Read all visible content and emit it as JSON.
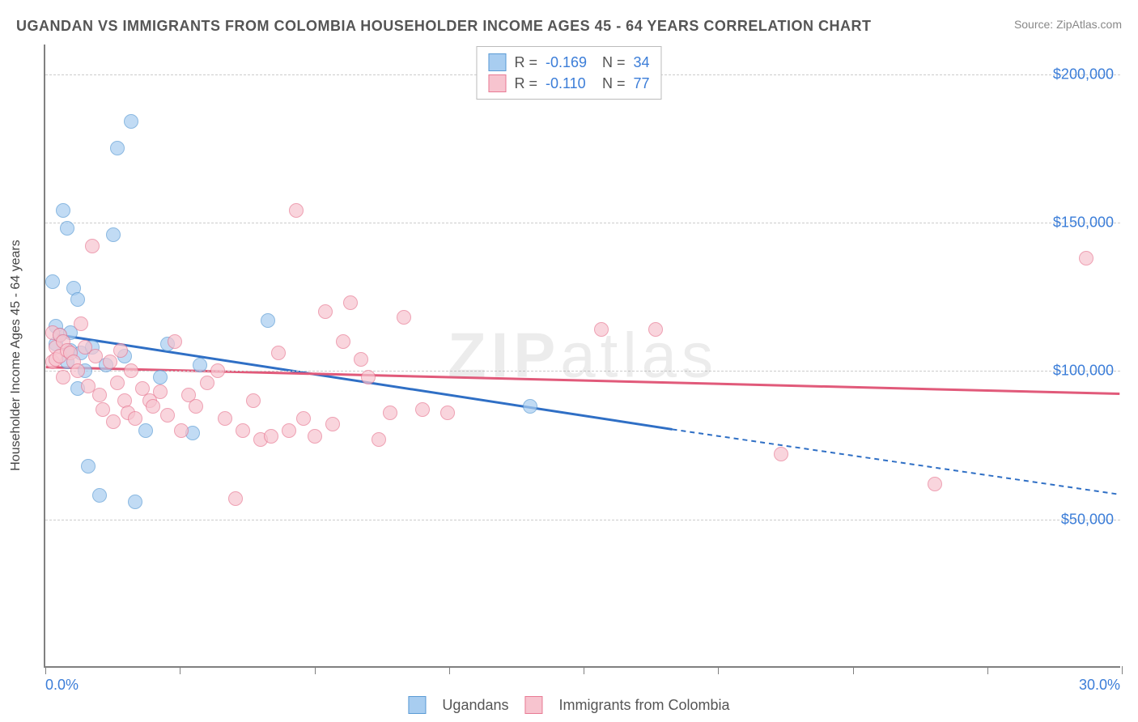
{
  "title": "UGANDAN VS IMMIGRANTS FROM COLOMBIA HOUSEHOLDER INCOME AGES 45 - 64 YEARS CORRELATION CHART",
  "source": "Source: ZipAtlas.com",
  "watermark": "ZIPatlas",
  "chart": {
    "type": "scatter",
    "y_axis_title": "Householder Income Ages 45 - 64 years",
    "background_color": "#ffffff",
    "grid_color": "#cccccc",
    "axis_color": "#808080",
    "x": {
      "min": 0.0,
      "max": 30.0,
      "label_min": "0.0%",
      "label_max": "30.0%",
      "label_color": "#3b7dd8",
      "ticks_pct": [
        0,
        12.5,
        25,
        37.5,
        50,
        62.5,
        75,
        87.5,
        100
      ]
    },
    "y": {
      "min": 0,
      "max": 210000,
      "gridlines": [
        50000,
        100000,
        150000,
        200000
      ],
      "labels": [
        "$50,000",
        "$100,000",
        "$150,000",
        "$200,000"
      ],
      "label_color": "#3b7dd8"
    },
    "series": [
      {
        "name": "Ugandans",
        "color_fill": "#a8cdf0",
        "color_stroke": "#5a9bd5",
        "trend_color": "#2f6fc5",
        "R": "-0.169",
        "N": "34",
        "trend": {
          "x1": 0.3,
          "y1": 112000,
          "x2_solid": 17.5,
          "y2_solid": 80000,
          "x2_dash": 30.0,
          "y2_dash": 58000
        },
        "points": [
          {
            "x": 0.2,
            "y": 130000
          },
          {
            "x": 0.3,
            "y": 115000
          },
          {
            "x": 0.3,
            "y": 109000
          },
          {
            "x": 0.4,
            "y": 112000
          },
          {
            "x": 0.5,
            "y": 154000
          },
          {
            "x": 0.6,
            "y": 148000
          },
          {
            "x": 0.6,
            "y": 103000
          },
          {
            "x": 0.7,
            "y": 113000
          },
          {
            "x": 0.7,
            "y": 107000
          },
          {
            "x": 0.8,
            "y": 128000
          },
          {
            "x": 0.9,
            "y": 124000
          },
          {
            "x": 0.9,
            "y": 94000
          },
          {
            "x": 1.0,
            "y": 106000
          },
          {
            "x": 1.1,
            "y": 100000
          },
          {
            "x": 1.2,
            "y": 68000
          },
          {
            "x": 1.3,
            "y": 108000
          },
          {
            "x": 1.5,
            "y": 58000
          },
          {
            "x": 1.7,
            "y": 102000
          },
          {
            "x": 1.9,
            "y": 146000
          },
          {
            "x": 2.0,
            "y": 175000
          },
          {
            "x": 2.2,
            "y": 105000
          },
          {
            "x": 2.4,
            "y": 184000
          },
          {
            "x": 2.5,
            "y": 56000
          },
          {
            "x": 2.8,
            "y": 80000
          },
          {
            "x": 3.2,
            "y": 98000
          },
          {
            "x": 3.4,
            "y": 109000
          },
          {
            "x": 4.1,
            "y": 79000
          },
          {
            "x": 4.3,
            "y": 102000
          },
          {
            "x": 6.2,
            "y": 117000
          },
          {
            "x": 13.5,
            "y": 88000
          }
        ]
      },
      {
        "name": "Immigrants from Colombia",
        "color_fill": "#f7c4cf",
        "color_stroke": "#e87a94",
        "trend_color": "#e15a7a",
        "R": "-0.110",
        "N": "77",
        "trend": {
          "x1": 0.0,
          "y1": 101000,
          "x2_solid": 30.0,
          "y2_solid": 92000,
          "x2_dash": 30.0,
          "y2_dash": 92000
        },
        "points": [
          {
            "x": 0.2,
            "y": 113000
          },
          {
            "x": 0.2,
            "y": 103000
          },
          {
            "x": 0.3,
            "y": 108000
          },
          {
            "x": 0.3,
            "y": 104000
          },
          {
            "x": 0.4,
            "y": 112000
          },
          {
            "x": 0.4,
            "y": 105000
          },
          {
            "x": 0.5,
            "y": 110000
          },
          {
            "x": 0.5,
            "y": 98000
          },
          {
            "x": 0.6,
            "y": 107000
          },
          {
            "x": 0.7,
            "y": 106000
          },
          {
            "x": 0.8,
            "y": 103000
          },
          {
            "x": 0.9,
            "y": 100000
          },
          {
            "x": 1.0,
            "y": 116000
          },
          {
            "x": 1.1,
            "y": 108000
          },
          {
            "x": 1.2,
            "y": 95000
          },
          {
            "x": 1.3,
            "y": 142000
          },
          {
            "x": 1.4,
            "y": 105000
          },
          {
            "x": 1.5,
            "y": 92000
          },
          {
            "x": 1.6,
            "y": 87000
          },
          {
            "x": 1.8,
            "y": 103000
          },
          {
            "x": 1.9,
            "y": 83000
          },
          {
            "x": 2.0,
            "y": 96000
          },
          {
            "x": 2.1,
            "y": 107000
          },
          {
            "x": 2.2,
            "y": 90000
          },
          {
            "x": 2.3,
            "y": 86000
          },
          {
            "x": 2.4,
            "y": 100000
          },
          {
            "x": 2.5,
            "y": 84000
          },
          {
            "x": 2.7,
            "y": 94000
          },
          {
            "x": 2.9,
            "y": 90000
          },
          {
            "x": 3.0,
            "y": 88000
          },
          {
            "x": 3.2,
            "y": 93000
          },
          {
            "x": 3.4,
            "y": 85000
          },
          {
            "x": 3.6,
            "y": 110000
          },
          {
            "x": 3.8,
            "y": 80000
          },
          {
            "x": 4.0,
            "y": 92000
          },
          {
            "x": 4.2,
            "y": 88000
          },
          {
            "x": 4.5,
            "y": 96000
          },
          {
            "x": 4.8,
            "y": 100000
          },
          {
            "x": 5.0,
            "y": 84000
          },
          {
            "x": 5.3,
            "y": 57000
          },
          {
            "x": 5.5,
            "y": 80000
          },
          {
            "x": 5.8,
            "y": 90000
          },
          {
            "x": 6.0,
            "y": 77000
          },
          {
            "x": 6.3,
            "y": 78000
          },
          {
            "x": 6.5,
            "y": 106000
          },
          {
            "x": 6.8,
            "y": 80000
          },
          {
            "x": 7.0,
            "y": 154000
          },
          {
            "x": 7.2,
            "y": 84000
          },
          {
            "x": 7.5,
            "y": 78000
          },
          {
            "x": 7.8,
            "y": 120000
          },
          {
            "x": 8.0,
            "y": 82000
          },
          {
            "x": 8.3,
            "y": 110000
          },
          {
            "x": 8.5,
            "y": 123000
          },
          {
            "x": 8.8,
            "y": 104000
          },
          {
            "x": 9.0,
            "y": 98000
          },
          {
            "x": 9.3,
            "y": 77000
          },
          {
            "x": 9.6,
            "y": 86000
          },
          {
            "x": 10.0,
            "y": 118000
          },
          {
            "x": 10.5,
            "y": 87000
          },
          {
            "x": 11.2,
            "y": 86000
          },
          {
            "x": 15.5,
            "y": 114000
          },
          {
            "x": 17.0,
            "y": 114000
          },
          {
            "x": 20.5,
            "y": 72000
          },
          {
            "x": 24.8,
            "y": 62000
          },
          {
            "x": 29.0,
            "y": 138000
          }
        ]
      }
    ],
    "legend_top": {
      "R_label": "R =",
      "N_label": "N ="
    },
    "legend_bottom_labels": [
      "Ugandans",
      "Immigrants from Colombia"
    ]
  }
}
